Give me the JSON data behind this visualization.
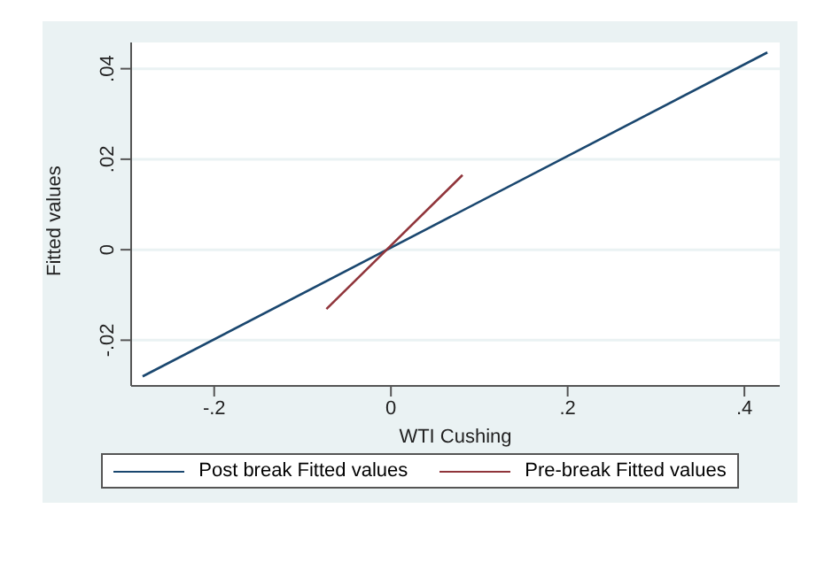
{
  "chart_data": {
    "type": "line",
    "xlabel": "WTI Cushing",
    "ylabel": "Fitted values",
    "series": [
      {
        "name": "Post break Fitted values",
        "color": "#1a476f",
        "x": [
          -0.281,
          0.426
        ],
        "values": [
          -0.028,
          0.0436
        ]
      },
      {
        "name": "Pre-break Fitted values",
        "color": "#90353b",
        "x": [
          -0.073,
          0.081
        ],
        "values": [
          -0.0131,
          0.0165
        ]
      }
    ],
    "xlim": [
      -0.294,
      0.44
    ],
    "ylim": [
      -0.0301,
      0.0458
    ],
    "xticks": [
      {
        "value": -0.2,
        "label": "-.2"
      },
      0,
      {
        "value": 0.2,
        "label": ".2"
      },
      {
        "value": 0.4,
        "label": ".4"
      }
    ],
    "yticks": [
      {
        "value": -0.02,
        "label": "-.02"
      },
      0,
      {
        "value": 0.02,
        "label": ".02"
      },
      {
        "value": 0.04,
        "label": ".04"
      }
    ],
    "grid": "y",
    "legend": "bottom",
    "marker": "none",
    "line_style": "solid"
  }
}
